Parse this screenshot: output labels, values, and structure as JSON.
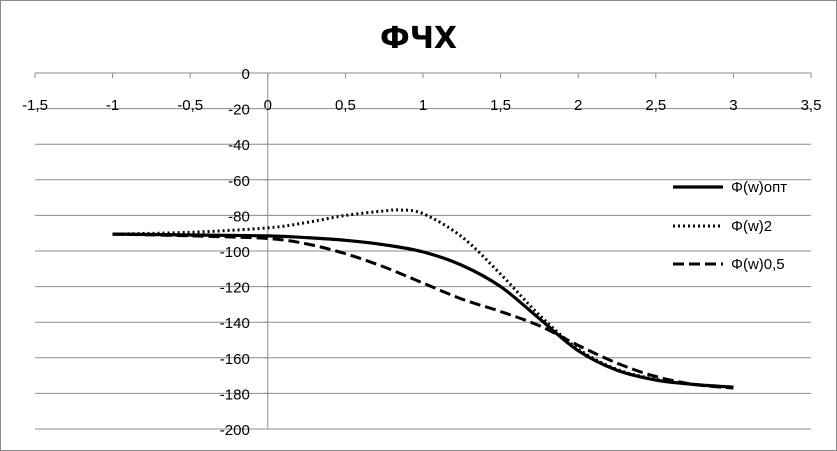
{
  "chart_data": {
    "type": "line",
    "title": "ФЧХ",
    "xlabel": "",
    "ylabel": "",
    "xlim": [
      -1.5,
      3.5
    ],
    "ylim": [
      -200,
      0
    ],
    "x_ticks": [
      "-1,5",
      "-1",
      "-0,5",
      "0",
      "0,5",
      "1",
      "1,5",
      "2",
      "2,5",
      "3",
      "3,5"
    ],
    "y_ticks": [
      "0",
      "-20",
      "-40",
      "-60",
      "-80",
      "-100",
      "-120",
      "-140",
      "-160",
      "-180",
      "-200"
    ],
    "grid": "horizontal",
    "legend_position": "right",
    "series": [
      {
        "name": "Φ(w)опт",
        "style": "solid",
        "color": "#000000",
        "x": [
          -1,
          -0.5,
          0,
          0.25,
          0.5,
          0.75,
          1,
          1.25,
          1.5,
          1.75,
          2,
          2.25,
          2.5,
          2.75,
          3
        ],
        "y": [
          -90.5,
          -91,
          -91.5,
          -92.5,
          -94,
          -96.5,
          -100.5,
          -108,
          -120,
          -138,
          -156,
          -167,
          -172.5,
          -175,
          -176.5
        ]
      },
      {
        "name": "Φ(w)2",
        "style": "dotted",
        "color": "#000000",
        "x": [
          -1,
          -0.5,
          0,
          0.25,
          0.5,
          0.75,
          0.85,
          1,
          1.25,
          1.5,
          1.75,
          2,
          2.25,
          2.5,
          2.75,
          3
        ],
        "y": [
          -90.5,
          -89.5,
          -87,
          -84,
          -80,
          -77.5,
          -77,
          -79,
          -92,
          -113,
          -136,
          -155,
          -166.5,
          -172,
          -175,
          -176.5
        ]
      },
      {
        "name": "Φ(w)0,5",
        "style": "dashed",
        "color": "#000000",
        "x": [
          -1,
          -0.5,
          0,
          0.25,
          0.5,
          0.75,
          1,
          1.25,
          1.5,
          1.75,
          2,
          2.25,
          2.5,
          2.75,
          3
        ],
        "y": [
          -90.5,
          -91.5,
          -93,
          -96,
          -101.5,
          -109,
          -118,
          -127,
          -134,
          -142,
          -153,
          -163,
          -170.5,
          -175,
          -177
        ]
      }
    ]
  }
}
